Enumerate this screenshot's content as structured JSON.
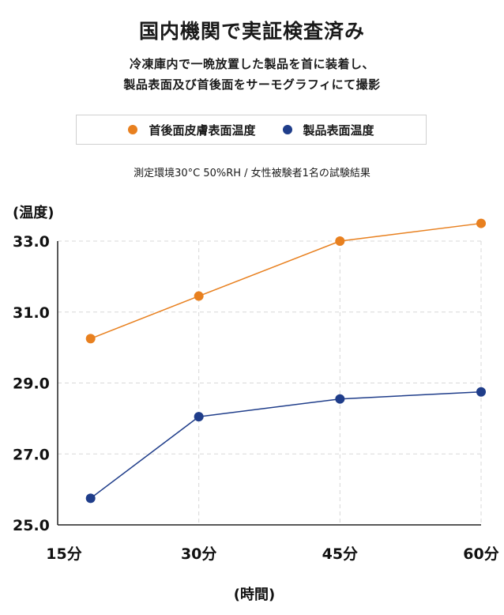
{
  "title": "国内機関で実証検査済み",
  "subtitle_lines": [
    "冷凍庫内で一晩放置した製品を首に装着し、",
    "製品表面及び首後面をサーモグラフィにて撮影"
  ],
  "note": "測定環境30°C 50%RH / 女性被験者1名の試験結果",
  "colors": {
    "orange": "#e8801f",
    "navy": "#1f3d8a",
    "grid": "#d8d8d8",
    "axis": "#222222"
  },
  "chart_data": {
    "type": "line",
    "ylabel": "(温度)",
    "xlabel": "(時間)",
    "x_ticks": [
      "15分",
      "30分",
      "45分",
      "60分"
    ],
    "y_ticks": [
      "25.0",
      "27.0",
      "29.0",
      "31.0",
      "33.0"
    ],
    "ylim": [
      25.0,
      33.0
    ],
    "grid": true,
    "legend_position": "top",
    "series": [
      {
        "name": "首後面皮膚表面温度",
        "color": "#e8801f",
        "x": [
          18.5,
          30,
          45,
          60
        ],
        "values": [
          30.25,
          31.45,
          33.0,
          33.5
        ]
      },
      {
        "name": "製品表面温度",
        "color": "#1f3d8a",
        "x": [
          18.5,
          30,
          45,
          60
        ],
        "values": [
          25.75,
          28.05,
          28.55,
          28.75
        ]
      }
    ]
  }
}
